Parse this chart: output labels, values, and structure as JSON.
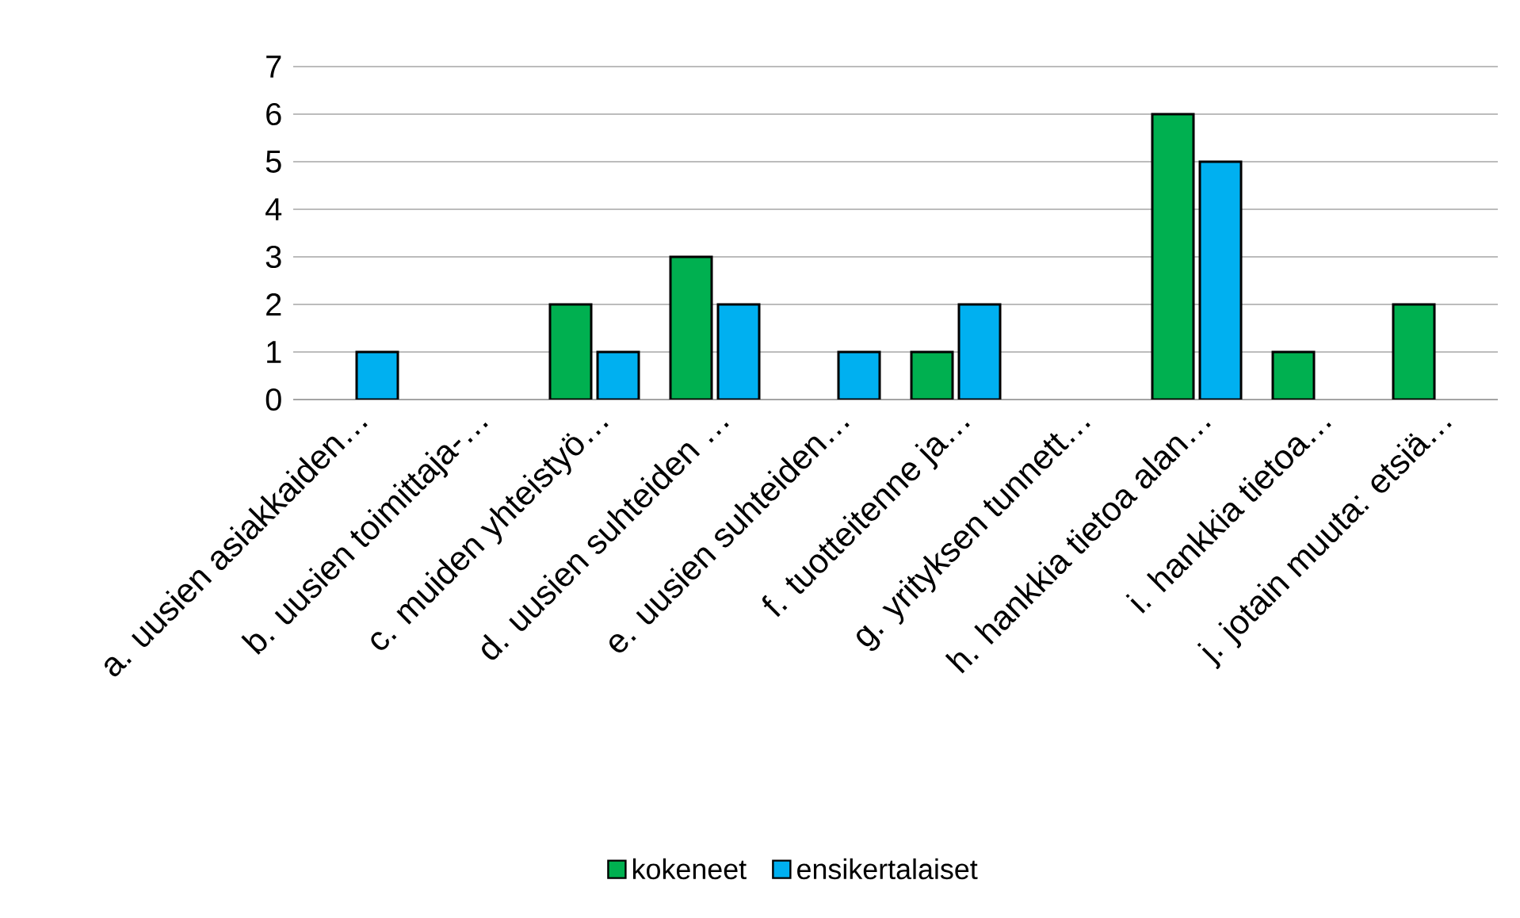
{
  "chart_data": {
    "type": "bar",
    "categories": [
      "a. uusien asiakkaiden…",
      "b. uusien toimittaja-…",
      "c. muiden yhteistyö…",
      "d. uusien suhteiden …",
      "e. uusien suhteiden…",
      "f. tuotteitenne ja…",
      "g. yrityksen tunnett…",
      "h. hankkia tietoa alan…",
      "i. hankkia tietoa…",
      "j. jotain muuta: etsiä…"
    ],
    "series": [
      {
        "name": "kokeneet",
        "color": "#00b050",
        "values": [
          0,
          0,
          2,
          3,
          0,
          1,
          0,
          6,
          1,
          2
        ]
      },
      {
        "name": "ensikertalaiset",
        "color": "#00b0f0",
        "values": [
          1,
          0,
          1,
          2,
          1,
          2,
          0,
          5,
          0,
          0
        ]
      }
    ],
    "ylim": [
      0,
      7
    ],
    "yticks": [
      0,
      1,
      2,
      3,
      4,
      5,
      6,
      7
    ],
    "grid": "y",
    "legend": "bottom"
  }
}
